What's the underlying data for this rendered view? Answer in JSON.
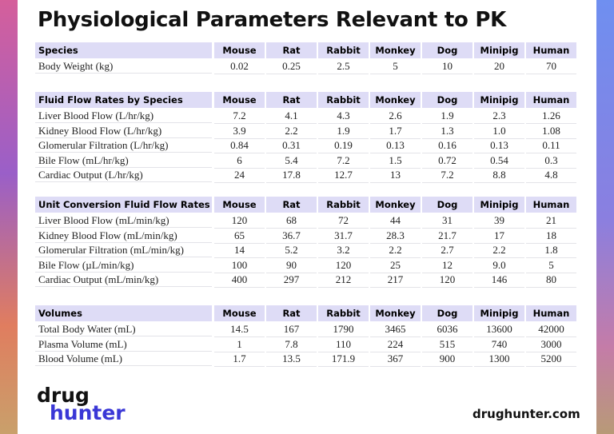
{
  "header": {
    "title": "Physiological Parameters Relevant to PK"
  },
  "sections": [
    {
      "header": [
        "Species",
        "Mouse",
        "Rat",
        "Rabbit",
        "Monkey",
        "Dog",
        "Minipig",
        "Human"
      ],
      "rows": [
        [
          "Body Weight (kg)",
          "0.02",
          "0.25",
          "2.5",
          "5",
          "10",
          "20",
          "70"
        ]
      ]
    },
    {
      "header": [
        "Fluid Flow Rates by Species",
        "Mouse",
        "Rat",
        "Rabbit",
        "Monkey",
        "Dog",
        "Minipig",
        "Human"
      ],
      "rows": [
        [
          "Liver Blood Flow (L/hr/kg)",
          "7.2",
          "4.1",
          "4.3",
          "2.6",
          "1.9",
          "2.3",
          "1.26"
        ],
        [
          "Kidney Blood Flow (L/hr/kg)",
          "3.9",
          "2.2",
          "1.9",
          "1.7",
          "1.3",
          "1.0",
          "1.08"
        ],
        [
          "Glomerular Filtration (L/hr/kg)",
          "0.84",
          "0.31",
          "0.19",
          "0.13",
          "0.16",
          "0.13",
          "0.11"
        ],
        [
          "Bile Flow (mL/hr/kg)",
          "6",
          "5.4",
          "7.2",
          "1.5",
          "0.72",
          "0.54",
          "0.3"
        ],
        [
          "Cardiac Output (L/hr/kg)",
          "24",
          "17.8",
          "12.7",
          "13",
          "7.2",
          "8.8",
          "4.8"
        ]
      ]
    },
    {
      "header": [
        "Unit Conversion Fluid Flow Rates",
        "Mouse",
        "Rat",
        "Rabbit",
        "Monkey",
        "Dog",
        "Minipig",
        "Human"
      ],
      "rows": [
        [
          "Liver Blood Flow (mL/min/kg)",
          "120",
          "68",
          "72",
          "44",
          "31",
          "39",
          "21"
        ],
        [
          "Kidney Blood Flow (mL/min/kg)",
          "65",
          "36.7",
          "31.7",
          "28.3",
          "21.7",
          "17",
          "18"
        ],
        [
          "Glomerular Filtration (mL/min/kg)",
          "14",
          "5.2",
          "3.2",
          "2.2",
          "2.7",
          "2.2",
          "1.8"
        ],
        [
          "Bile Flow (µL/min/kg)",
          "100",
          "90",
          "120",
          "25",
          "12",
          "9.0",
          "5"
        ],
        [
          "Cardiac Output (mL/min/kg)",
          "400",
          "297",
          "212",
          "217",
          "120",
          "146",
          "80"
        ]
      ]
    },
    {
      "header": [
        "Volumes",
        "Mouse",
        "Rat",
        "Rabbit",
        "Monkey",
        "Dog",
        "Minipig",
        "Human"
      ],
      "rows": [
        [
          "Total Body Water (mL)",
          "14.5",
          "167",
          "1790",
          "3465",
          "6036",
          "13600",
          "42000"
        ],
        [
          "Plasma Volume (mL)",
          "1",
          "7.8",
          "110",
          "224",
          "515",
          "740",
          "3000"
        ],
        [
          "Blood Volume (mL)",
          "1.7",
          "13.5",
          "171.9",
          "367",
          "900",
          "1300",
          "5200"
        ]
      ]
    }
  ],
  "footer": {
    "logo_top": "drug",
    "logo_bottom": "hunter",
    "url": "drughunter.com"
  }
}
